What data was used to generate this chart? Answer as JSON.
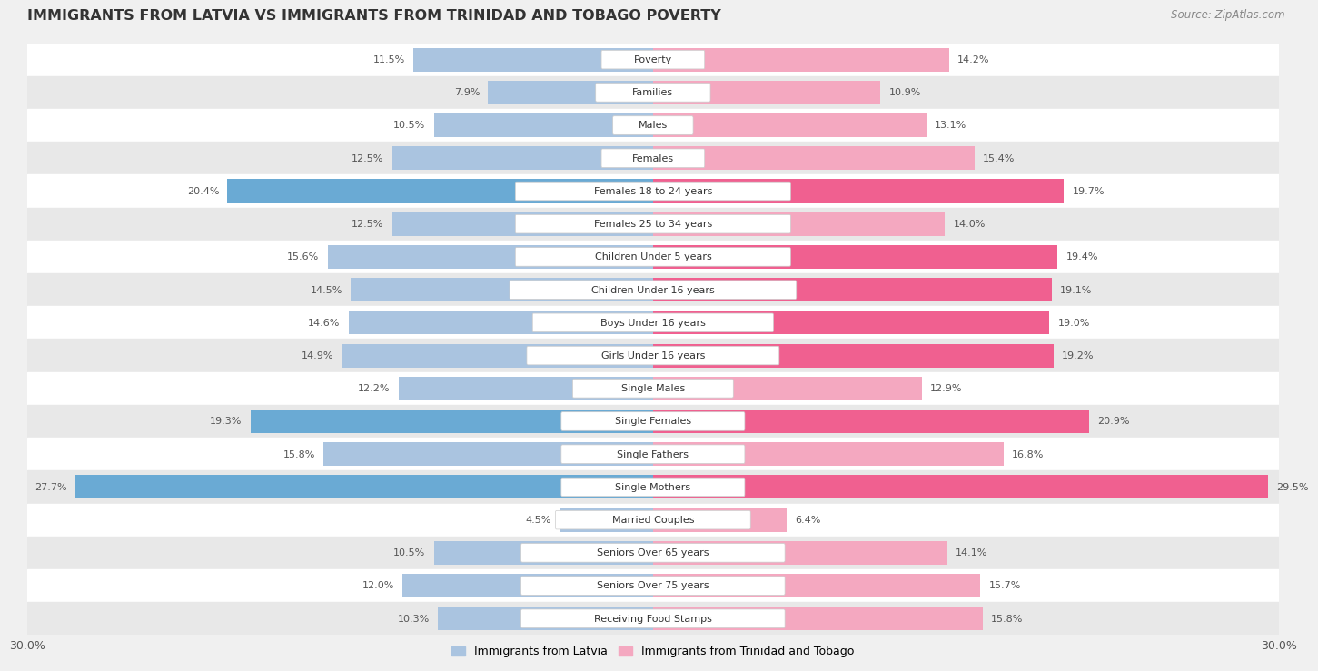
{
  "title": "IMMIGRANTS FROM LATVIA VS IMMIGRANTS FROM TRINIDAD AND TOBAGO POVERTY",
  "source": "Source: ZipAtlas.com",
  "categories": [
    "Poverty",
    "Families",
    "Males",
    "Females",
    "Females 18 to 24 years",
    "Females 25 to 34 years",
    "Children Under 5 years",
    "Children Under 16 years",
    "Boys Under 16 years",
    "Girls Under 16 years",
    "Single Males",
    "Single Females",
    "Single Fathers",
    "Single Mothers",
    "Married Couples",
    "Seniors Over 65 years",
    "Seniors Over 75 years",
    "Receiving Food Stamps"
  ],
  "latvia_values": [
    11.5,
    7.9,
    10.5,
    12.5,
    20.4,
    12.5,
    15.6,
    14.5,
    14.6,
    14.9,
    12.2,
    19.3,
    15.8,
    27.7,
    4.5,
    10.5,
    12.0,
    10.3
  ],
  "trinidad_values": [
    14.2,
    10.9,
    13.1,
    15.4,
    19.7,
    14.0,
    19.4,
    19.1,
    19.0,
    19.2,
    12.9,
    20.9,
    16.8,
    29.5,
    6.4,
    14.1,
    15.7,
    15.8
  ],
  "latvia_color": "#aac4e0",
  "trinidad_color": "#f4a8c0",
  "latvia_highlight_color": "#6aaad4",
  "trinidad_highlight_color": "#f06090",
  "axis_limit": 30.0,
  "bar_height": 0.72,
  "background_color": "#f0f0f0",
  "row_even_color": "#ffffff",
  "row_odd_color": "#e8e8e8",
  "legend_latvia": "Immigrants from Latvia",
  "legend_trinidad": "Immigrants from Trinidad and Tobago",
  "label_value_color": "#555555",
  "label_pill_bg": "#f7f7f7",
  "label_pill_edge": "#cccccc"
}
